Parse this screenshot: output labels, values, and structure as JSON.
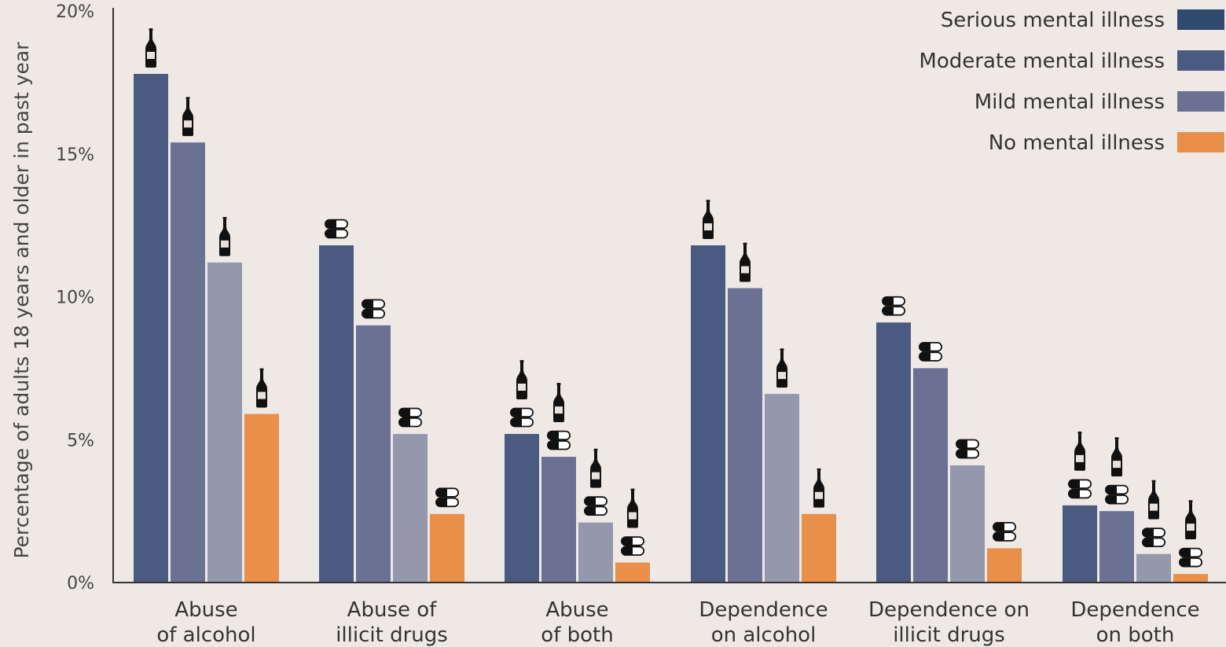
{
  "chart_data": {
    "type": "bar",
    "ylabel": "Percentage of adults 18 years and older in past year",
    "ylim": [
      0,
      20
    ],
    "yticks": [
      "0%",
      "5%",
      "10%",
      "15%",
      "20%"
    ],
    "yticks_values": [
      0,
      5,
      10,
      15,
      20
    ],
    "grid": false,
    "legend_position": "top-right",
    "categories": [
      [
        "Abuse",
        "of alcohol"
      ],
      [
        "Abuse of",
        "illicit drugs"
      ],
      [
        "Abuse",
        "of both"
      ],
      [
        "Dependence",
        "on alcohol"
      ],
      [
        "Dependence on",
        "illicit drugs"
      ],
      [
        "Dependence",
        "on both"
      ]
    ],
    "category_icons": [
      "bottle",
      "pills",
      "both",
      "bottle",
      "pills",
      "both"
    ],
    "series": [
      {
        "name": "Serious mental illness",
        "legend_color": "#2f4a6e",
        "bar_color": "#4a5a80",
        "values": [
          17.8,
          11.8,
          5.2,
          11.8,
          9.1,
          2.7
        ]
      },
      {
        "name": "Moderate mental illness",
        "legend_color": "#4a5a80",
        "bar_color": "#6b7193",
        "values": [
          15.4,
          9.0,
          4.4,
          10.3,
          7.5,
          2.5
        ]
      },
      {
        "name": "Mild mental illness",
        "legend_color": "#6b7193",
        "bar_color": "#9597ad",
        "values": [
          11.2,
          5.2,
          2.1,
          6.6,
          4.1,
          1.0
        ]
      },
      {
        "name": "No mental illness",
        "legend_color": "#e98f49",
        "bar_color": "#e98f49",
        "values": [
          5.9,
          2.4,
          0.7,
          2.4,
          1.2,
          0.3
        ]
      }
    ]
  }
}
